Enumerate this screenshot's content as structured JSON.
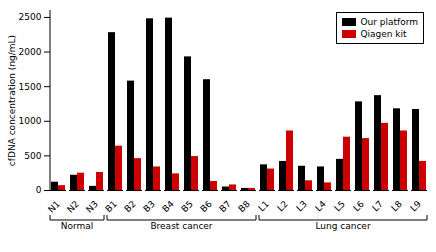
{
  "chart_data": {
    "type": "bar",
    "categories": [
      "N1",
      "N2",
      "N3",
      "B1",
      "B2",
      "B3",
      "B4",
      "B5",
      "B6",
      "B7",
      "B8",
      "L1",
      "L2",
      "L3",
      "L4",
      "L5",
      "L6",
      "L7",
      "L8",
      "L9"
    ],
    "series": [
      {
        "name": "Our platform",
        "color": "#000000",
        "values": [
          120,
          220,
          60,
          2280,
          1580,
          2480,
          2490,
          1930,
          1600,
          50,
          30,
          370,
          420,
          350,
          340,
          450,
          1280,
          1370,
          1180,
          1170
        ]
      },
      {
        "name": "Qiagen kit",
        "color": "#cc0000",
        "values": [
          70,
          250,
          260,
          640,
          460,
          340,
          240,
          490,
          130,
          80,
          30,
          310,
          860,
          140,
          110,
          770,
          750,
          970,
          860,
          420
        ]
      }
    ],
    "groups": [
      {
        "name": "Normal",
        "categories": [
          "N1",
          "N2",
          "N3"
        ]
      },
      {
        "name": "Breast cancer",
        "categories": [
          "B1",
          "B2",
          "B3",
          "B4",
          "B5",
          "B6",
          "B7",
          "B8"
        ]
      },
      {
        "name": "Lung cancer",
        "categories": [
          "L1",
          "L2",
          "L3",
          "L4",
          "L5",
          "L6",
          "L7",
          "L8",
          "L9"
        ]
      }
    ],
    "ylabel": "cfDNA concentration (ng/mL)",
    "ylim": [
      0,
      2600
    ],
    "yticks": [
      0,
      500,
      1000,
      1500,
      2000,
      2500
    ],
    "legend": "upper right",
    "grid": false
  }
}
